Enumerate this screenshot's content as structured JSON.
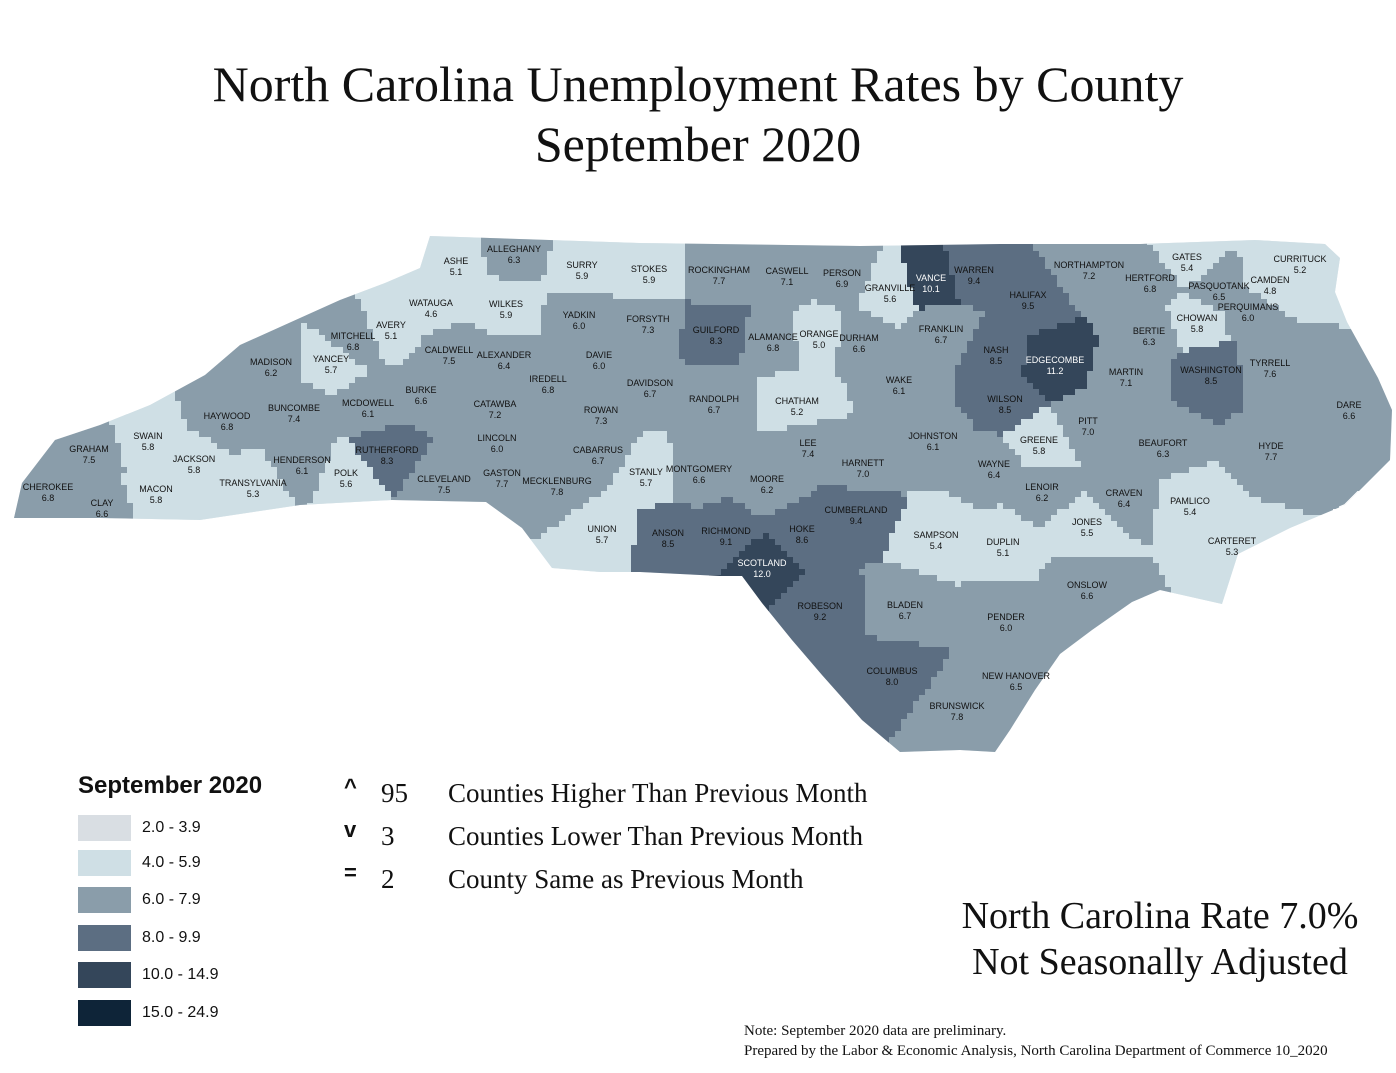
{
  "title": {
    "line1": "North Carolina Unemployment Rates by County",
    "line2": "September 2020"
  },
  "legend": {
    "title": "September 2020",
    "bins": [
      {
        "range": "2.0 - 3.9",
        "color": "#d9dee3"
      },
      {
        "range": "4.0 - 5.9",
        "color": "#cfdfe5"
      },
      {
        "range": "6.0 - 7.9",
        "color": "#8a9daa"
      },
      {
        "range": "8.0 - 9.9",
        "color": "#5c6e82"
      },
      {
        "range": "10.0 - 14.9",
        "color": "#34465a"
      },
      {
        "range": "15.0 - 24.9",
        "color": "#0e2438"
      }
    ]
  },
  "stats": [
    {
      "symbol": "^",
      "count": "95",
      "text": "Counties Higher Than Previous Month"
    },
    {
      "symbol": "v",
      "count": "3",
      "text": "Counties Lower Than Previous Month"
    },
    {
      "symbol": "=",
      "count": "2",
      "text": "County Same as Previous Month"
    }
  ],
  "state_rate": {
    "line1": "North Carolina Rate 7.0%",
    "line2": "Not Seasonally Adjusted"
  },
  "notes": {
    "line1": "Note: September 2020 data are preliminary.",
    "line2": "Prepared by the Labor & Economic Analysis, North Carolina Department of Commerce 10_2020"
  },
  "counties": [
    {
      "name": "ASHE",
      "rate": "5.1"
    },
    {
      "name": "ALLEGHANY",
      "rate": "6.3"
    },
    {
      "name": "SURRY",
      "rate": "5.9"
    },
    {
      "name": "STOKES",
      "rate": "5.9"
    },
    {
      "name": "ROCKINGHAM",
      "rate": "7.7"
    },
    {
      "name": "CASWELL",
      "rate": "7.1"
    },
    {
      "name": "PERSON",
      "rate": "6.9"
    },
    {
      "name": "GRANVILLE",
      "rate": "5.6"
    },
    {
      "name": "VANCE",
      "rate": "10.1"
    },
    {
      "name": "WARREN",
      "rate": "9.4"
    },
    {
      "name": "NORTHAMPTON",
      "rate": "7.2"
    },
    {
      "name": "GATES",
      "rate": "5.4"
    },
    {
      "name": "CURRITUCK",
      "rate": "5.2"
    },
    {
      "name": "HERTFORD",
      "rate": "6.8"
    },
    {
      "name": "CAMDEN",
      "rate": "4.8"
    },
    {
      "name": "PASQUOTANK",
      "rate": "6.5"
    },
    {
      "name": "PERQUIMANS",
      "rate": "6.0"
    },
    {
      "name": "CHOWAN",
      "rate": "5.8"
    },
    {
      "name": "WATAUGA",
      "rate": "4.6"
    },
    {
      "name": "WILKES",
      "rate": "5.9"
    },
    {
      "name": "AVERY",
      "rate": "5.1"
    },
    {
      "name": "MITCHELL",
      "rate": "6.8"
    },
    {
      "name": "YANCEY",
      "rate": "5.7"
    },
    {
      "name": "MADISON",
      "rate": "6.2"
    },
    {
      "name": "CALDWELL",
      "rate": "7.5"
    },
    {
      "name": "YADKIN",
      "rate": "6.0"
    },
    {
      "name": "FORSYTH",
      "rate": "7.3"
    },
    {
      "name": "GUILFORD",
      "rate": "8.3"
    },
    {
      "name": "ALAMANCE",
      "rate": "6.8"
    },
    {
      "name": "ORANGE",
      "rate": "5.0"
    },
    {
      "name": "DURHAM",
      "rate": "6.6"
    },
    {
      "name": "FRANKLIN",
      "rate": "6.7"
    },
    {
      "name": "HALIFAX",
      "rate": "9.5"
    },
    {
      "name": "BERTIE",
      "rate": "6.3"
    },
    {
      "name": "NASH",
      "rate": "8.5"
    },
    {
      "name": "EDGECOMBE",
      "rate": "11.2"
    },
    {
      "name": "MARTIN",
      "rate": "7.1"
    },
    {
      "name": "WASHINGTON",
      "rate": "8.5"
    },
    {
      "name": "TYRRELL",
      "rate": "7.6"
    },
    {
      "name": "DARE",
      "rate": "6.6"
    },
    {
      "name": "ALEXANDER",
      "rate": "6.4"
    },
    {
      "name": "DAVIE",
      "rate": "6.0"
    },
    {
      "name": "IREDELL",
      "rate": "6.8"
    },
    {
      "name": "DAVIDSON",
      "rate": "6.7"
    },
    {
      "name": "RANDOLPH",
      "rate": "6.7"
    },
    {
      "name": "CHATHAM",
      "rate": "5.2"
    },
    {
      "name": "WAKE",
      "rate": "6.1"
    },
    {
      "name": "WILSON",
      "rate": "8.5"
    },
    {
      "name": "PITT",
      "rate": "7.0"
    },
    {
      "name": "BEAUFORT",
      "rate": "6.3"
    },
    {
      "name": "HYDE",
      "rate": "7.7"
    },
    {
      "name": "BUNCOMBE",
      "rate": "7.4"
    },
    {
      "name": "HAYWOOD",
      "rate": "6.8"
    },
    {
      "name": "BURKE",
      "rate": "6.6"
    },
    {
      "name": "MCDOWELL",
      "rate": "6.1"
    },
    {
      "name": "CATAWBA",
      "rate": "7.2"
    },
    {
      "name": "ROWAN",
      "rate": "7.3"
    },
    {
      "name": "LINCOLN",
      "rate": "6.0"
    },
    {
      "name": "SWAIN",
      "rate": "5.8"
    },
    {
      "name": "GRAHAM",
      "rate": "7.5"
    },
    {
      "name": "JACKSON",
      "rate": "5.8"
    },
    {
      "name": "RUTHERFORD",
      "rate": "8.3"
    },
    {
      "name": "HENDERSON",
      "rate": "6.1"
    },
    {
      "name": "POLK",
      "rate": "5.6"
    },
    {
      "name": "TRANSYLVANIA",
      "rate": "5.3"
    },
    {
      "name": "CHEROKEE",
      "rate": "6.8"
    },
    {
      "name": "MACON",
      "rate": "5.8"
    },
    {
      "name": "CLAY",
      "rate": "6.6"
    },
    {
      "name": "CLEVELAND",
      "rate": "7.5"
    },
    {
      "name": "GASTON",
      "rate": "7.7"
    },
    {
      "name": "MECKLENBURG",
      "rate": "7.8"
    },
    {
      "name": "CABARRUS",
      "rate": "6.7"
    },
    {
      "name": "STANLY",
      "rate": "5.7"
    },
    {
      "name": "MONTGOMERY",
      "rate": "6.6"
    },
    {
      "name": "MOORE",
      "rate": "6.2"
    },
    {
      "name": "LEE",
      "rate": "7.4"
    },
    {
      "name": "HARNETT",
      "rate": "7.0"
    },
    {
      "name": "JOHNSTON",
      "rate": "6.1"
    },
    {
      "name": "WAYNE",
      "rate": "6.4"
    },
    {
      "name": "GREENE",
      "rate": "5.8"
    },
    {
      "name": "LENOIR",
      "rate": "6.2"
    },
    {
      "name": "CRAVEN",
      "rate": "6.4"
    },
    {
      "name": "PAMLICO",
      "rate": "5.4"
    },
    {
      "name": "JONES",
      "rate": "5.5"
    },
    {
      "name": "CARTERET",
      "rate": "5.3"
    },
    {
      "name": "UNION",
      "rate": "5.7"
    },
    {
      "name": "ANSON",
      "rate": "8.5"
    },
    {
      "name": "RICHMOND",
      "rate": "9.1"
    },
    {
      "name": "SCOTLAND",
      "rate": "12.0"
    },
    {
      "name": "HOKE",
      "rate": "8.6"
    },
    {
      "name": "CUMBERLAND",
      "rate": "9.4"
    },
    {
      "name": "SAMPSON",
      "rate": "5.4"
    },
    {
      "name": "DUPLIN",
      "rate": "5.1"
    },
    {
      "name": "ONSLOW",
      "rate": "6.6"
    },
    {
      "name": "ROBESON",
      "rate": "9.2"
    },
    {
      "name": "BLADEN",
      "rate": "6.7"
    },
    {
      "name": "PENDER",
      "rate": "6.0"
    },
    {
      "name": "COLUMBUS",
      "rate": "8.0"
    },
    {
      "name": "NEW HANOVER",
      "rate": "6.5"
    },
    {
      "name": "BRUNSWICK",
      "rate": "7.8"
    }
  ]
}
